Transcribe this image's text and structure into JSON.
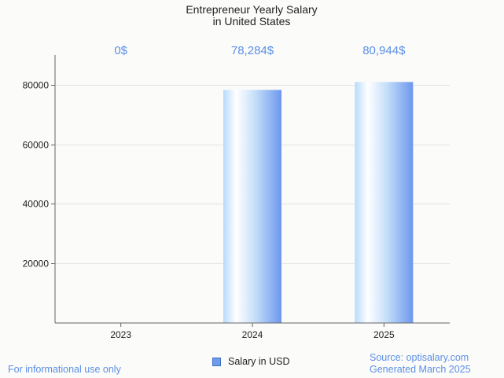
{
  "chart_data": {
    "type": "bar",
    "title_lines": [
      "Entrepreneur Yearly Salary",
      "in United States"
    ],
    "categories": [
      "2023",
      "2024",
      "2025"
    ],
    "values": [
      0,
      78284,
      80944
    ],
    "value_labels": [
      "0$",
      "78,284$",
      "80,944$"
    ],
    "yticks": [
      20000,
      40000,
      60000,
      80000
    ],
    "ylim": [
      0,
      90000
    ],
    "xlabel": "",
    "ylabel": "",
    "grid": true,
    "legend": {
      "label": "Salary in USD",
      "position": "bottom-center"
    },
    "series": [
      {
        "name": "Salary in USD",
        "values": [
          0,
          78284,
          80944
        ]
      }
    ]
  },
  "footer": {
    "disclaimer": "For informational use only",
    "source": "Source: optisalary.com",
    "generated": "Generated March 2025"
  },
  "colors": {
    "label": "#5b8fe6",
    "bar_light": "#ffffff",
    "bar_mid": "#b5d8fb",
    "bar_dark": "#6d97ee",
    "grid": "#e3e3e3",
    "axis": "#666666"
  }
}
